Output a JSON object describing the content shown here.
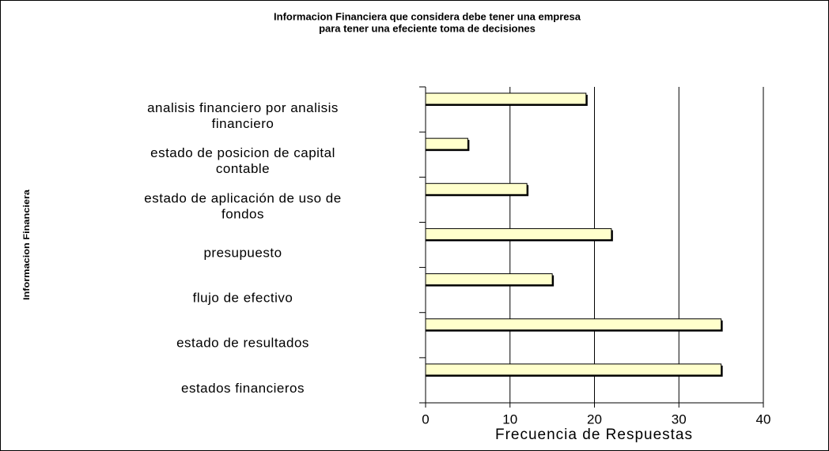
{
  "chart_data": {
    "type": "bar",
    "orientation": "horizontal",
    "title": "Informacion Financiera que considera debe tener una empresa",
    "subtitle": "para tener una efeciente toma de decisiones",
    "x_label": "Frecuencia de Respuestas",
    "y_label": "Informacion Financiera",
    "categories": [
      "analisis financiero por analisis financiero",
      "estado de posicion de capital contable",
      "estado de aplicación de uso de fondos",
      "presupuesto",
      "flujo de efectivo",
      "estado de resultados",
      "estados financieros"
    ],
    "values": [
      19,
      5,
      12,
      22,
      15,
      35,
      35
    ],
    "color": "#ffffcc",
    "xlim": [
      0,
      40
    ],
    "xticks": [
      0,
      10,
      20,
      30,
      40
    ],
    "grid": true
  }
}
